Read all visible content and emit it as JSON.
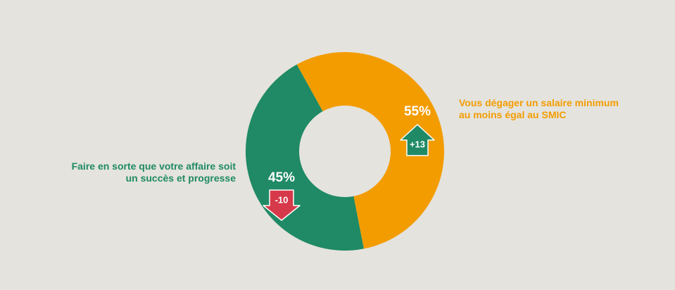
{
  "chart_data": {
    "type": "pie",
    "variant": "donut",
    "slices": [
      {
        "label_lines": [
          "Vous dégager un salaire minimum",
          "au moins égal au SMIC"
        ],
        "value": 55,
        "value_label": "55%",
        "change_label": "+13",
        "change_direction": "up",
        "color": "#f39c00",
        "change_color": "#1f8a65"
      },
      {
        "label_lines": [
          "Faire en sorte que votre affaire soit",
          "un succès et progresse"
        ],
        "value": 45,
        "value_label": "45%",
        "change_label": "-10",
        "change_direction": "down",
        "color": "#1f8a65",
        "change_color": "#d63a4a"
      }
    ]
  },
  "colors": {
    "background": "#e4e3dd"
  }
}
